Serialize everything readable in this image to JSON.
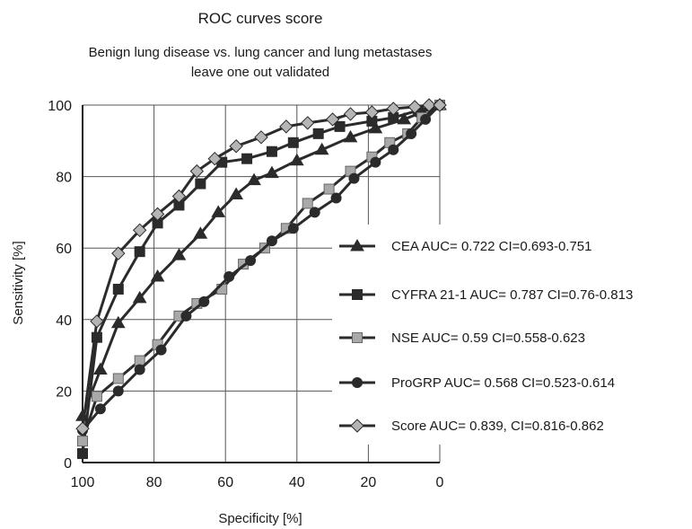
{
  "chart_data": {
    "type": "line",
    "title": "ROC curves score",
    "subtitle_lines": [
      "Benign lung disease vs. lung cancer and lung metastases",
      "leave one out validated"
    ],
    "xlabel": "Specificity [%]",
    "ylabel": "Sensitivity [%]",
    "xlim": [
      100,
      0
    ],
    "ylim": [
      0,
      100
    ],
    "x_ticks": [
      "100",
      "80",
      "60",
      "40",
      "20",
      "0"
    ],
    "y_ticks": [
      "0",
      "20",
      "40",
      "60",
      "80",
      "100"
    ],
    "grid": true,
    "legend_position": "right",
    "colors": {
      "axis": "#1a1a1a",
      "grid": "#555555",
      "dark_series": "#2b2b2b",
      "nse_fill": "#a9a9a9",
      "score_fill": "#b5b5b5"
    },
    "series": [
      {
        "name": "CEA AUC= 0.722 CI=0.693-0.751",
        "marker": "triangle",
        "x": [
          100,
          95,
          90,
          84,
          79,
          73,
          67,
          62,
          57,
          52,
          47,
          40,
          33,
          25,
          18,
          10,
          5,
          0
        ],
        "y": [
          13,
          26,
          39,
          46,
          52,
          58,
          64,
          70,
          75,
          79,
          81,
          84.5,
          87.5,
          91,
          93.5,
          96,
          98,
          100
        ]
      },
      {
        "name": "CYFRA 21-1 AUC= 0.787 CI=0.76-0.813",
        "marker": "square",
        "x": [
          100,
          96,
          90,
          84,
          79,
          73,
          67,
          61,
          54,
          47,
          41,
          34,
          28,
          19,
          13,
          6,
          0
        ],
        "y": [
          2.5,
          35,
          48.5,
          59,
          67,
          72,
          78,
          84,
          85,
          87,
          89.5,
          92,
          94,
          95.5,
          96.5,
          98.5,
          100
        ]
      },
      {
        "name": "NSE AUC= 0.59 CI=0.558-0.623",
        "marker": "square",
        "x": [
          100,
          96,
          90,
          84,
          79,
          73,
          68,
          61,
          55,
          49,
          43,
          37,
          31,
          25,
          19,
          14,
          9,
          5,
          0
        ],
        "y": [
          6,
          18.5,
          23.5,
          28.5,
          33,
          41,
          44.5,
          48.5,
          55.5,
          60,
          65.5,
          72.5,
          76.5,
          81.5,
          85.5,
          89.5,
          92,
          96.5,
          100
        ]
      },
      {
        "name": "ProGRP AUC= 0.568 CI=0.523-0.614",
        "marker": "circle",
        "x": [
          100,
          95,
          90,
          84,
          78,
          71,
          66,
          59,
          53,
          47,
          41,
          35,
          29,
          24,
          18,
          13,
          8,
          4,
          0
        ],
        "y": [
          9,
          15,
          20,
          26,
          31.5,
          41,
          45,
          52,
          56.5,
          62,
          65.5,
          70,
          74,
          79.5,
          84,
          87.5,
          92,
          96,
          100
        ]
      },
      {
        "name": "Score  AUC= 0.839, CI=0.816-0.862",
        "marker": "diamond",
        "x": [
          100,
          96,
          90,
          84,
          79,
          73,
          68,
          63,
          57,
          50,
          43,
          37,
          30,
          25,
          19,
          13,
          7,
          3,
          0
        ],
        "y": [
          9.5,
          39.5,
          58.5,
          65,
          69.5,
          74.5,
          81.5,
          85,
          88.5,
          91,
          94,
          95,
          96,
          97.5,
          98,
          99,
          99.5,
          100,
          100
        ]
      }
    ]
  }
}
